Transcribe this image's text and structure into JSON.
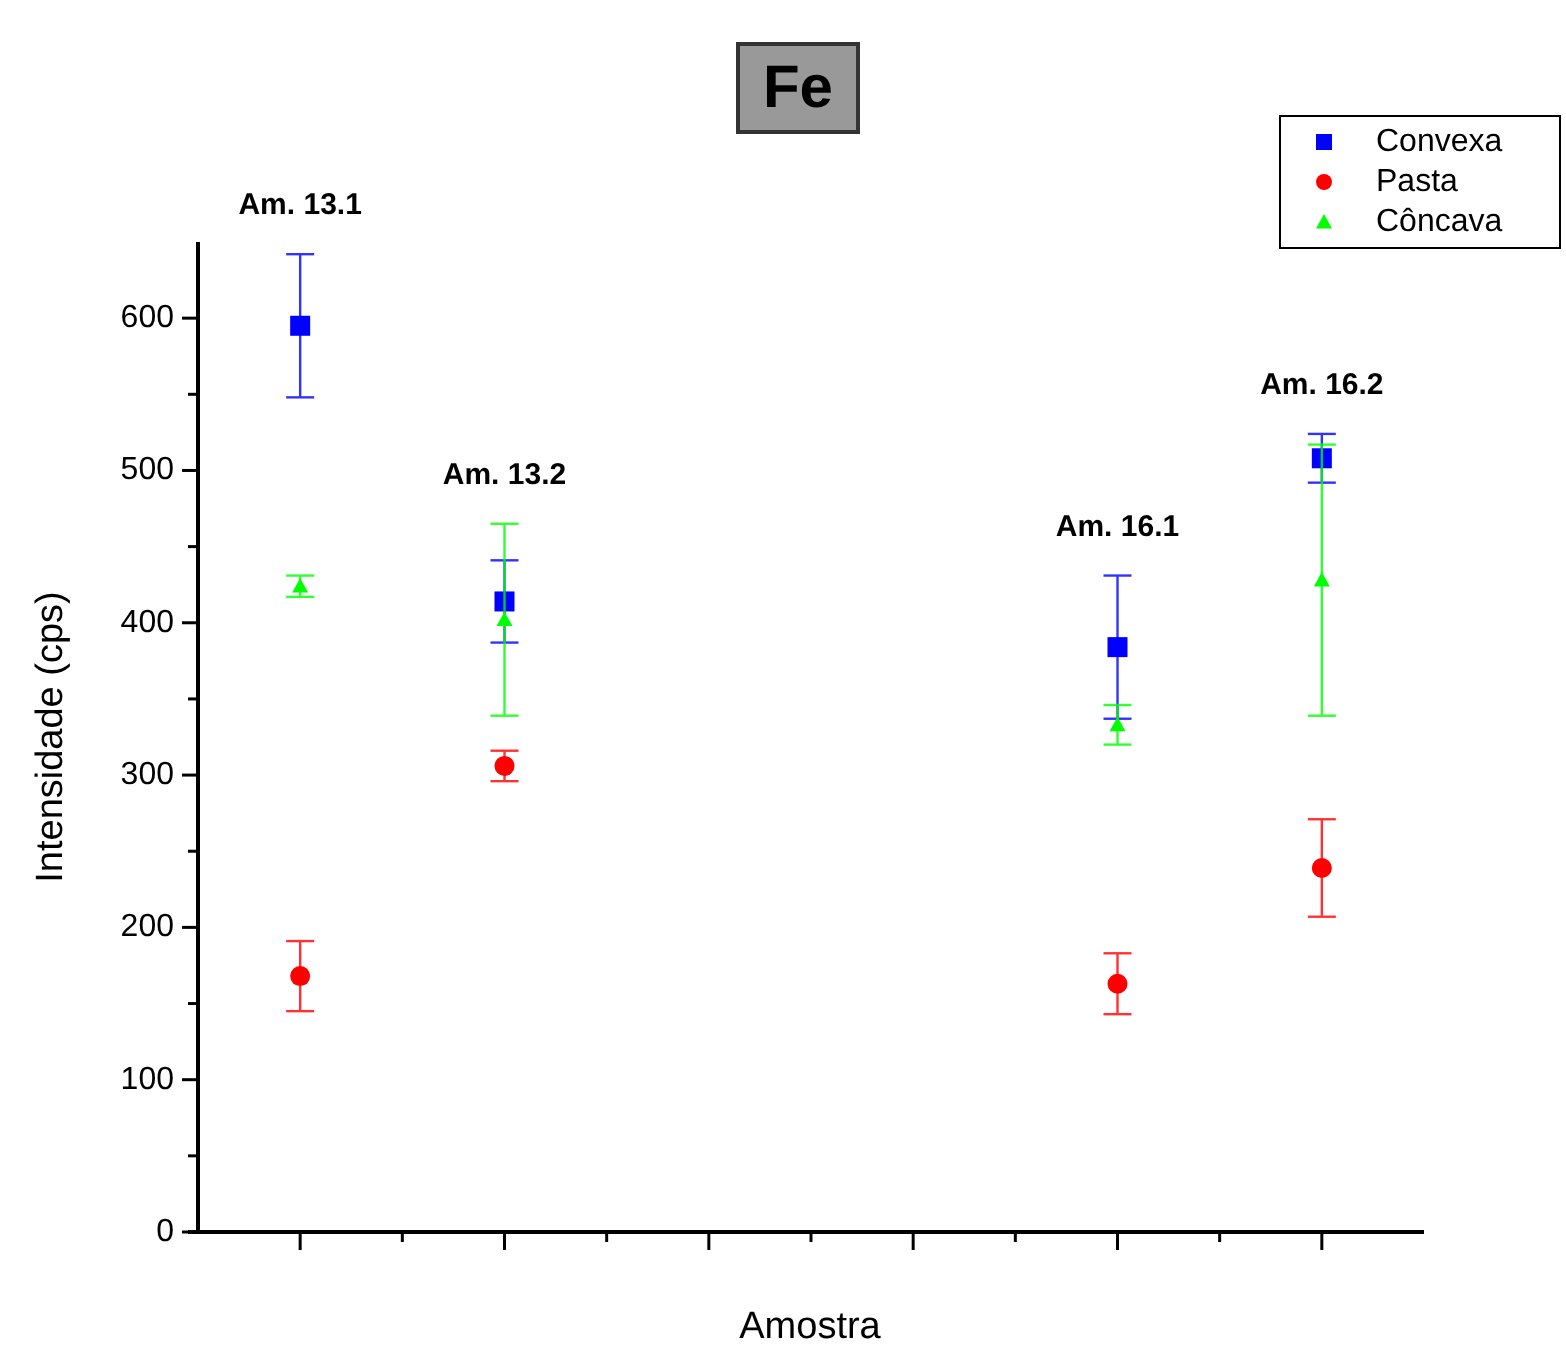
{
  "chart_data": {
    "type": "scatter",
    "title": "Fe",
    "xlabel": "Amostra",
    "ylabel": "Intensidade (cps)",
    "categories": [
      null,
      null,
      null,
      null,
      null,
      null
    ],
    "ylim": [
      0,
      650
    ],
    "yticks": [
      0,
      {
        "value": 50,
        "label": null
      },
      100,
      {
        "value": 150,
        "label": null
      },
      200,
      {
        "value": 250,
        "label": null
      },
      300,
      {
        "value": 350,
        "label": null
      },
      400,
      {
        "value": 450,
        "label": null
      },
      500,
      {
        "value": 550,
        "label": null
      },
      600
    ],
    "series": [
      {
        "name": "Convexa",
        "color": "#0000ff",
        "marker": "square",
        "values": [
          595,
          414,
          null,
          null,
          384,
          508
        ],
        "errors": [
          47,
          27,
          null,
          null,
          47,
          16
        ]
      },
      {
        "name": "Pasta",
        "color": "#ff0000",
        "marker": "circle",
        "values": [
          168,
          306,
          null,
          null,
          163,
          239
        ],
        "errors": [
          23,
          10,
          null,
          null,
          20,
          32
        ]
      },
      {
        "name": "Côncava",
        "color": "#00ff00",
        "marker": "triangle",
        "values": [
          424,
          402,
          null,
          null,
          333,
          428
        ],
        "errors": [
          7,
          63,
          null,
          null,
          13,
          89
        ]
      }
    ],
    "annotations": [
      "Am. 13.1",
      "Am. 13.2",
      "Am. 16.1",
      "Am. 16.2"
    ],
    "legend": "top right"
  }
}
